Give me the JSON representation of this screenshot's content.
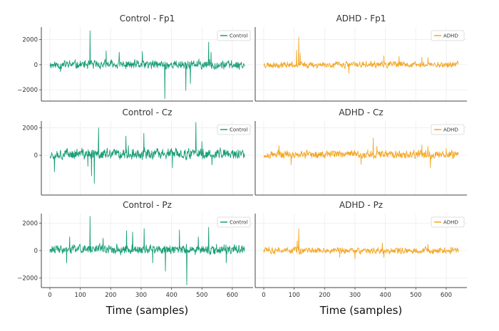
{
  "chart_data": [
    {
      "type": "line",
      "title": "Control - Fp1",
      "series": [
        {
          "name": "Control",
          "color": "#1a9e77"
        }
      ],
      "x_range": [
        0,
        640
      ],
      "ylim": [
        -2900,
        3000
      ],
      "xticks": [],
      "xtick_labels": [],
      "yticks": [
        2000,
        0,
        -2000
      ],
      "ytick_labels": [
        "2000",
        "0",
        "−2000"
      ],
      "xlabel": "",
      "signal": {
        "base": 450,
        "center": 0,
        "seed": 11,
        "spikes": [
          [
            35,
            -550
          ],
          [
            132,
            2700
          ],
          [
            185,
            1100
          ],
          [
            228,
            1000
          ],
          [
            304,
            1050
          ],
          [
            378,
            -2700
          ],
          [
            447,
            -2050
          ],
          [
            462,
            -1500
          ],
          [
            522,
            1800
          ],
          [
            530,
            1000
          ]
        ]
      }
    },
    {
      "type": "line",
      "title": "ADHD - Fp1",
      "series": [
        {
          "name": "ADHD",
          "color": "#f5a623"
        }
      ],
      "x_range": [
        0,
        640
      ],
      "ylim": [
        -2900,
        3000
      ],
      "xticks": [],
      "xtick_labels": [],
      "yticks": [],
      "ytick_labels": [],
      "xlabel": "",
      "signal": {
        "base": 320,
        "center": 0,
        "seed": 23,
        "spikes": [
          [
            108,
            1150
          ],
          [
            115,
            2200
          ],
          [
            120,
            900
          ],
          [
            280,
            -700
          ],
          [
            395,
            700
          ],
          [
            445,
            650
          ],
          [
            520,
            600
          ],
          [
            540,
            560
          ]
        ]
      }
    },
    {
      "type": "line",
      "title": "Control - Cz",
      "series": [
        {
          "name": "Control",
          "color": "#1a9e77"
        }
      ],
      "x_range": [
        0,
        640
      ],
      "ylim": [
        -2900,
        2500
      ],
      "xticks": [],
      "xtick_labels": [],
      "yticks": [
        2000,
        0
      ],
      "ytick_labels": [
        "2000",
        "0"
      ],
      "xlabel": "",
      "signal": {
        "base": 500,
        "center": 100,
        "seed": 37,
        "spikes": [
          [
            15,
            -1200
          ],
          [
            125,
            -800
          ],
          [
            137,
            -1500
          ],
          [
            146,
            -2050
          ],
          [
            160,
            2000
          ],
          [
            250,
            1400
          ],
          [
            258,
            700
          ],
          [
            309,
            1600
          ],
          [
            403,
            -900
          ],
          [
            480,
            2400
          ],
          [
            500,
            1000
          ],
          [
            533,
            -700
          ],
          [
            560,
            550
          ]
        ]
      }
    },
    {
      "type": "line",
      "title": "ADHD - Cz",
      "series": [
        {
          "name": "ADHD",
          "color": "#f5a623"
        }
      ],
      "x_range": [
        0,
        640
      ],
      "ylim": [
        -2900,
        2500
      ],
      "xticks": [],
      "xtick_labels": [],
      "yticks": [],
      "ytick_labels": [],
      "xlabel": "",
      "signal": {
        "base": 360,
        "center": 50,
        "seed": 49,
        "spikes": [
          [
            50,
            700
          ],
          [
            90,
            -700
          ],
          [
            320,
            -650
          ],
          [
            360,
            1250
          ],
          [
            372,
            650
          ],
          [
            520,
            750
          ],
          [
            540,
            650
          ],
          [
            548,
            -900
          ],
          [
            600,
            500
          ]
        ]
      }
    },
    {
      "type": "line",
      "title": "Control - Pz",
      "series": [
        {
          "name": "Control",
          "color": "#1a9e77"
        }
      ],
      "x_range": [
        0,
        640
      ],
      "ylim": [
        -2700,
        2700
      ],
      "xticks": [
        0,
        100,
        200,
        300,
        400,
        500,
        600
      ],
      "xtick_labels": [
        "0",
        "100",
        "200",
        "300",
        "400",
        "500",
        "600"
      ],
      "yticks": [
        2000,
        0,
        -2000
      ],
      "ytick_labels": [
        "2000",
        "0",
        "−2000"
      ],
      "xlabel": "Time (samples)",
      "signal": {
        "base": 440,
        "center": 80,
        "seed": 61,
        "spikes": [
          [
            55,
            -900
          ],
          [
            65,
            1000
          ],
          [
            132,
            2500
          ],
          [
            175,
            900
          ],
          [
            252,
            1450
          ],
          [
            272,
            1350
          ],
          [
            310,
            1600
          ],
          [
            338,
            -900
          ],
          [
            380,
            -1500
          ],
          [
            426,
            1500
          ],
          [
            450,
            -2500
          ],
          [
            488,
            1000
          ],
          [
            522,
            1700
          ],
          [
            580,
            -900
          ]
        ]
      }
    },
    {
      "type": "line",
      "title": "ADHD - Pz",
      "series": [
        {
          "name": "ADHD",
          "color": "#f5a623"
        }
      ],
      "x_range": [
        0,
        640
      ],
      "ylim": [
        -2700,
        2700
      ],
      "xticks": [
        0,
        100,
        200,
        300,
        400,
        500,
        600
      ],
      "xtick_labels": [
        "0",
        "100",
        "200",
        "300",
        "400",
        "500",
        "600"
      ],
      "yticks": [],
      "ytick_labels": [],
      "xlabel": "Time (samples)",
      "signal": {
        "base": 300,
        "center": 0,
        "seed": 73,
        "spikes": [
          [
            110,
            700
          ],
          [
            115,
            1600
          ],
          [
            250,
            -500
          ],
          [
            300,
            -600
          ],
          [
            390,
            550
          ],
          [
            395,
            -500
          ],
          [
            540,
            450
          ]
        ]
      }
    }
  ]
}
